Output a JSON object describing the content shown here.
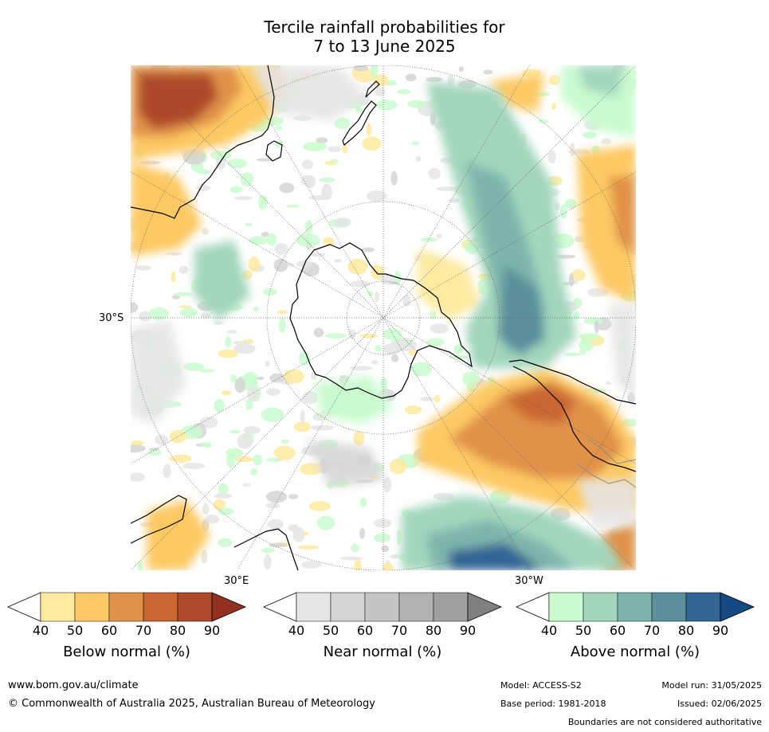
{
  "title": {
    "line1": "Tercile rainfall probabilities for",
    "line2": "7 to 13 June 2025"
  },
  "map": {
    "projection": "south-polar-stereographic",
    "lat_label": "30°S",
    "lon_labels": [
      "30°E",
      "30°W"
    ]
  },
  "colorbars": [
    {
      "name": "Below normal (%)",
      "ticks": [
        "40",
        "50",
        "60",
        "70",
        "80",
        "90"
      ],
      "colors": [
        "#ffffff",
        "#ffeaa0",
        "#fdc964",
        "#e0924a",
        "#c96631",
        "#ad4a2b",
        "#94301f"
      ]
    },
    {
      "name": "Near normal (%)",
      "ticks": [
        "40",
        "50",
        "60",
        "70",
        "80",
        "90"
      ],
      "colors": [
        "#ffffff",
        "#e5e5e5",
        "#d5d5d5",
        "#c5c5c5",
        "#b2b2b2",
        "#a0a0a0",
        "#808080"
      ]
    },
    {
      "name": "Above normal (%)",
      "ticks": [
        "40",
        "50",
        "60",
        "70",
        "80",
        "90"
      ],
      "colors": [
        "#ffffff",
        "#c9fbcf",
        "#a2d6bd",
        "#7db5ac",
        "#5a8f9b",
        "#336594",
        "#144a82"
      ]
    }
  ],
  "footer": {
    "website": "www.bom.gov.au/climate",
    "copyright": "© Commonwealth of Australia 2025, Australian Bureau of Meteorology",
    "model": "Model: ACCESS-S2",
    "model_run": "Model run: 31/05/2025",
    "base_period": "Base period: 1981-2018",
    "issued": "Issued: 02/06/2025",
    "disclaimer": "Boundaries are not considered authoritative"
  }
}
